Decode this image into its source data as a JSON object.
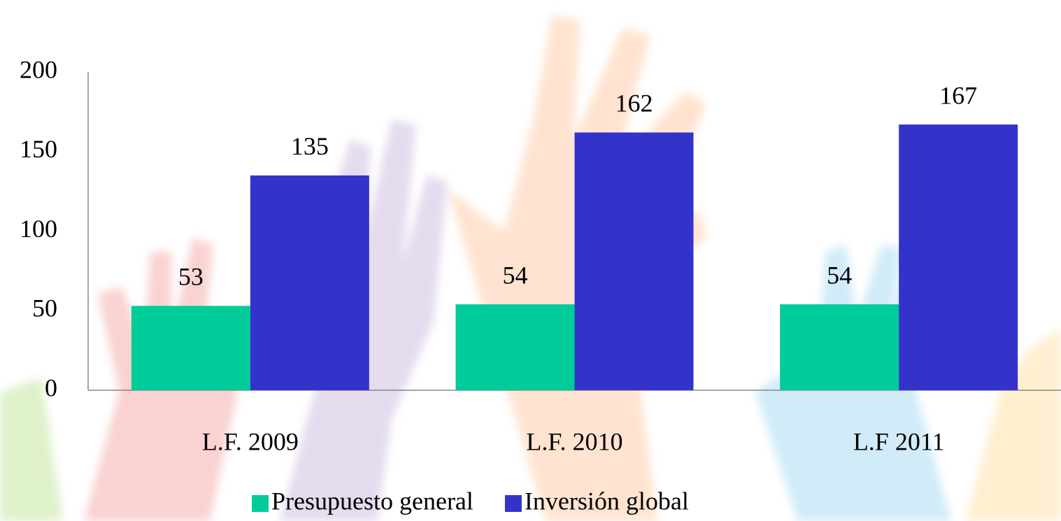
{
  "chart_data": {
    "type": "bar",
    "categories": [
      "L.F. 2009",
      "L.F. 2010",
      "L.F 2011"
    ],
    "series": [
      {
        "name": "Presupuesto general",
        "color": "#00cc99",
        "values": [
          53,
          54,
          54
        ]
      },
      {
        "name": "Inversión global",
        "color": "#3333cc",
        "values": [
          135,
          162,
          167
        ]
      }
    ],
    "ylim": [
      0,
      200
    ],
    "yticks": [
      0,
      50,
      100,
      150,
      200
    ],
    "legend": "bottom"
  }
}
